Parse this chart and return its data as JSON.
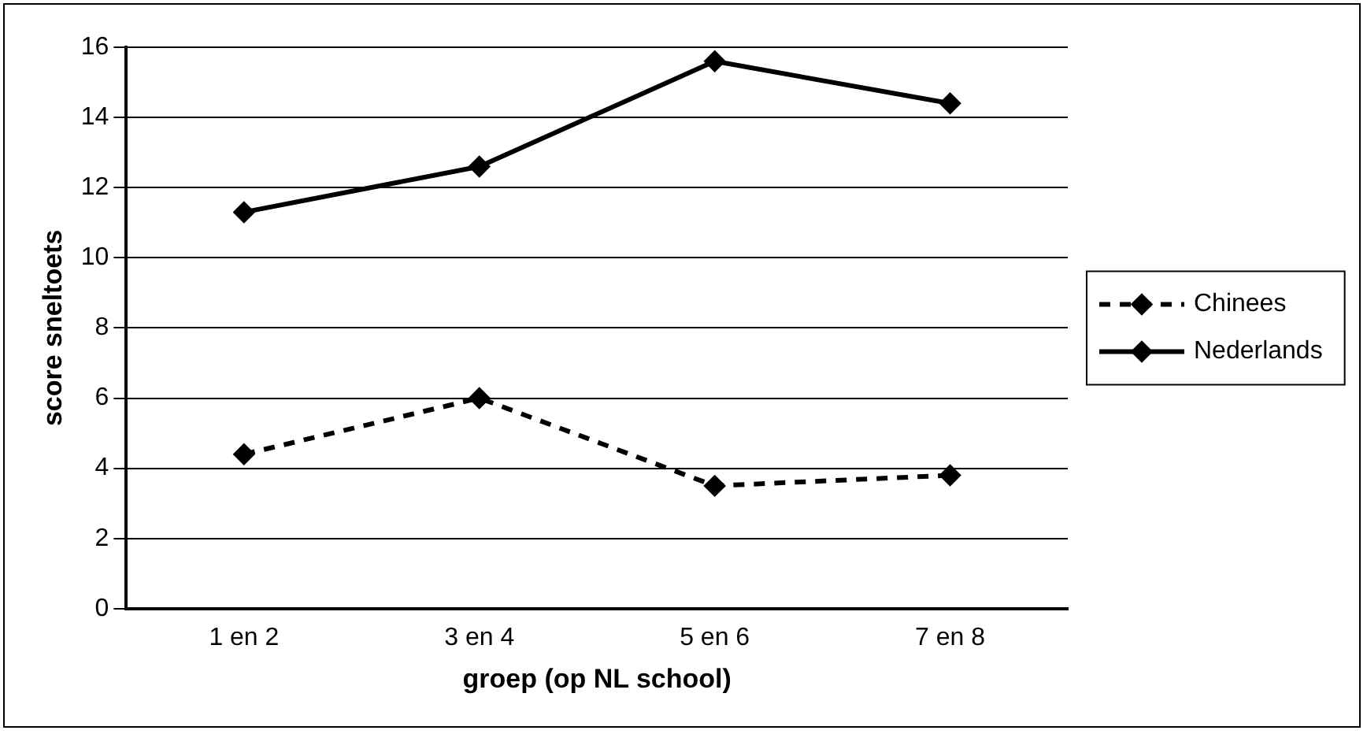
{
  "chart_data": {
    "type": "line",
    "xlabel": "groep (op NL school)",
    "ylabel": "score sneltoets",
    "categories": [
      "1 en 2",
      "3 en 4",
      "5 en 6",
      "7 en 8"
    ],
    "series": [
      {
        "name": "Chinees",
        "color": "#000000",
        "values": [
          4.4,
          6.0,
          3.5,
          3.8
        ],
        "line_style": "dashed"
      },
      {
        "name": "Nederlands",
        "color": "#000000",
        "values": [
          11.3,
          12.6,
          15.6,
          14.4
        ],
        "line_style": "solid"
      }
    ],
    "ylim": [
      0,
      16
    ],
    "yticks": [
      0,
      2,
      4,
      6,
      8,
      10,
      12,
      14,
      16
    ],
    "grid": "y",
    "legend": "right",
    "marker": "diamond"
  }
}
